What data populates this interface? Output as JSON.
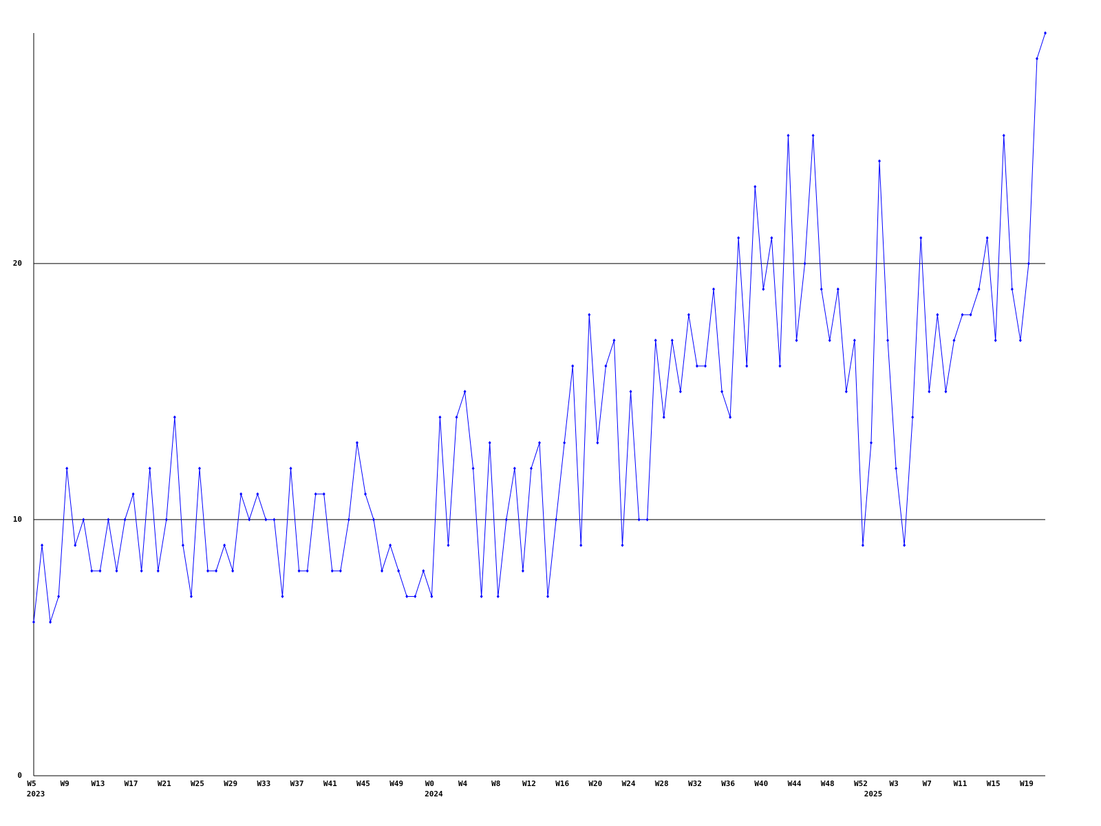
{
  "chart_data": {
    "type": "line",
    "categories": [
      "W5",
      null,
      null,
      null,
      "W9",
      null,
      null,
      null,
      "W13",
      null,
      null,
      null,
      "W17",
      null,
      null,
      null,
      "W21",
      null,
      null,
      null,
      "W25",
      null,
      null,
      null,
      "W29",
      null,
      null,
      null,
      "W33",
      null,
      null,
      null,
      "W37",
      null,
      null,
      null,
      "W41",
      null,
      null,
      null,
      "W45",
      null,
      null,
      null,
      "W49",
      null,
      null,
      null,
      "W0",
      null,
      null,
      null,
      "W4",
      null,
      null,
      null,
      "W8",
      null,
      null,
      null,
      "W12",
      null,
      null,
      null,
      "W16",
      null,
      null,
      null,
      "W20",
      null,
      null,
      null,
      "W24",
      null,
      null,
      null,
      "W28",
      null,
      null,
      null,
      "W32",
      null,
      null,
      null,
      "W36",
      null,
      null,
      null,
      "W40",
      null,
      null,
      null,
      "W44",
      null,
      null,
      null,
      "W48",
      null,
      null,
      null,
      "W52",
      null,
      null,
      null,
      "W3",
      null,
      null,
      null,
      "W7",
      null,
      null,
      null,
      "W11",
      null,
      null,
      null,
      "W15",
      null,
      null,
      null,
      "W19",
      null,
      null
    ],
    "x_sublabels": [
      "2023",
      null,
      null,
      null,
      null,
      null,
      null,
      null,
      null,
      null,
      null,
      null,
      null,
      null,
      null,
      null,
      null,
      null,
      null,
      null,
      null,
      null,
      null,
      null,
      null,
      null,
      null,
      null,
      null,
      null,
      null,
      null,
      null,
      null,
      null,
      null,
      null,
      null,
      null,
      null,
      null,
      null,
      null,
      null,
      null,
      null,
      null,
      null,
      "2024",
      null,
      null,
      null,
      null,
      null,
      null,
      null,
      null,
      null,
      null,
      null,
      null,
      null,
      null,
      null,
      null,
      null,
      null,
      null,
      null,
      null,
      null,
      null,
      null,
      null,
      null,
      null,
      null,
      null,
      null,
      null,
      null,
      null,
      null,
      null,
      null,
      null,
      null,
      null,
      null,
      null,
      null,
      null,
      null,
      null,
      null,
      null,
      null,
      null,
      null,
      null,
      null,
      "2025",
      null,
      null,
      null,
      null,
      null,
      null,
      null,
      null,
      null,
      null,
      null,
      null,
      null,
      null,
      null,
      null,
      null,
      null,
      null,
      null,
      null
    ],
    "series": [
      {
        "color": "#0000ff",
        "values": [
          6,
          9,
          6,
          7,
          12,
          9,
          10,
          8,
          8,
          10,
          8,
          10,
          11,
          8,
          12,
          8,
          10,
          14,
          9,
          7,
          12,
          8,
          8,
          9,
          8,
          11,
          10,
          11,
          10,
          10,
          7,
          12,
          8,
          8,
          11,
          11,
          8,
          8,
          10,
          13,
          11,
          10,
          8,
          9,
          8,
          7,
          7,
          8,
          7,
          14,
          9,
          14,
          15,
          12,
          7,
          13,
          7,
          10,
          12,
          8,
          12,
          13,
          7,
          10,
          13,
          16,
          9,
          18,
          13,
          16,
          17,
          9,
          15,
          10,
          10,
          17,
          14,
          17,
          15,
          18,
          16,
          16,
          19,
          15,
          14,
          21,
          16,
          23,
          19,
          21,
          16,
          25,
          17,
          20,
          25,
          19,
          17,
          19,
          15,
          17,
          9,
          13,
          24,
          17,
          12,
          9,
          14,
          21,
          15,
          18,
          15,
          17,
          18,
          18,
          19,
          21,
          17,
          25,
          19,
          17,
          20,
          28,
          29
        ]
      }
    ],
    "ylim": [
      0,
      29
    ],
    "yticks": [
      0,
      10,
      20
    ],
    "grid": true
  }
}
